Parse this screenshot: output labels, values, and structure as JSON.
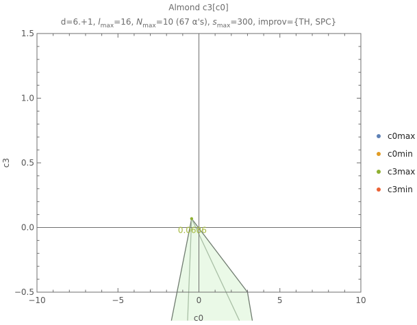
{
  "chart_data": {
    "type": "scatter",
    "title": "Almond c3[c0]",
    "subtitle": {
      "d": "6.+1",
      "l_max": "16",
      "N_max": "10 (67 α's)",
      "s_max": "300",
      "improv": "{TH, SPC}"
    },
    "xlabel": "c0",
    "ylabel": "c3",
    "xlim": [
      -10,
      10
    ],
    "ylim": [
      -0.5,
      1.5
    ],
    "x_ticks": [
      -10,
      -5,
      0,
      5,
      10
    ],
    "y_ticks": [
      -0.5,
      0.0,
      0.5,
      1.0,
      1.5
    ],
    "x_tick_labels": [
      "−10",
      "−5",
      "0",
      "5",
      "10"
    ],
    "y_tick_labels": [
      "−0.5",
      "0.0",
      "0.5",
      "1.0",
      "1.5"
    ],
    "legend_position": "right",
    "series": [
      {
        "name": "c0max",
        "color": "#5e81b5"
      },
      {
        "name": "c0min",
        "color": "#e19c24"
      },
      {
        "name": "c3max",
        "color": "#8fb032"
      },
      {
        "name": "c3min",
        "color": "#eb6235"
      }
    ],
    "marked_point": {
      "x": -0.45,
      "y": 0.0686
    },
    "annotation": "0.0686",
    "region_vertices": [
      [
        -0.45,
        0.0686
      ],
      [
        3.0,
        -0.5
      ],
      [
        3.3,
        -0.72
      ],
      [
        -1.7,
        -0.72
      ]
    ],
    "inner_lines": [
      {
        "from": [
          -0.45,
          0.0686
        ],
        "to": [
          -0.7,
          -0.72
        ]
      },
      {
        "from": [
          -0.45,
          0.0686
        ],
        "to": [
          2.5,
          -0.72
        ]
      }
    ],
    "fill_color": "#e6f8e3",
    "edge_color": "#707c70",
    "grid": false
  }
}
